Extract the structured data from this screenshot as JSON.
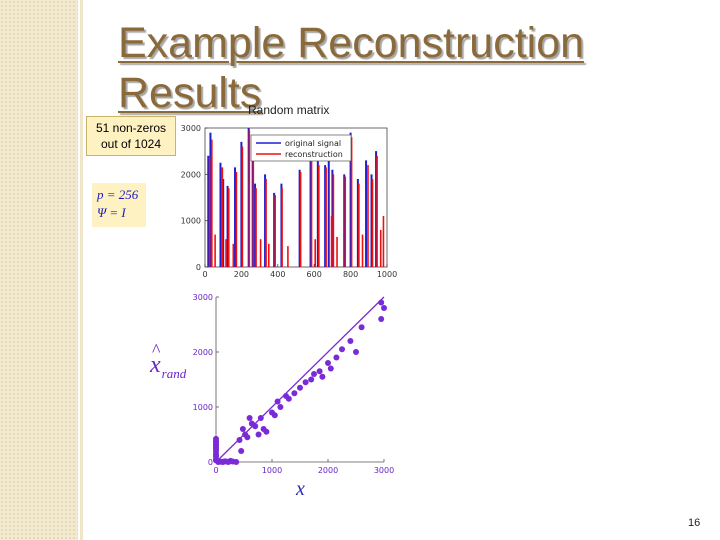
{
  "slide": {
    "title": "Example Reconstruction Results",
    "subtitle": "Random matrix",
    "note_line1": "51 non-zeros",
    "note_line2": "out of 1024",
    "eq_line1": "p = 256",
    "eq_line2": "Ψ = I",
    "xhat_main": "x",
    "xhat_hat": "^",
    "xhat_sub": "rand",
    "x_label": "x",
    "page_number": "16"
  },
  "colors": {
    "title": "#8a6a3a",
    "original_signal": "#1f1fd0",
    "reconstruction": "#ee1111",
    "scatter_points": "#7a2ad6",
    "fit_line": "#7a2ad6"
  },
  "chart_data": [
    {
      "type": "bar",
      "subtype": "stem",
      "legend_position": "top-right",
      "xlim": [
        0,
        1000
      ],
      "ylim": [
        0,
        3000
      ],
      "x_ticks": [
        "0",
        "200",
        "400",
        "600",
        "800",
        "1000"
      ],
      "y_ticks": [
        "0",
        "1000",
        "2000",
        "3000"
      ],
      "legend": [
        "original signal",
        "reconstruction"
      ],
      "series": [
        {
          "name": "original signal",
          "x": [
            18,
            30,
            85,
            100,
            124,
            165,
            200,
            240,
            262,
            275,
            330,
            380,
            420,
            520,
            580,
            620,
            660,
            680,
            700,
            765,
            800,
            840,
            885,
            915,
            940
          ],
          "values": [
            2400,
            2900,
            2250,
            1900,
            1750,
            2150,
            2700,
            3000,
            2600,
            1800,
            2000,
            1600,
            1800,
            2100,
            2500,
            2300,
            2200,
            2600,
            2100,
            2000,
            2900,
            1900,
            2300,
            2000,
            2500
          ]
        },
        {
          "name": "reconstruction",
          "x": [
            20,
            32,
            50,
            90,
            110,
            125,
            150,
            167,
            200,
            238,
            260,
            275,
            300,
            330,
            345,
            380,
            418,
            450,
            520,
            580,
            600,
            620,
            660,
            690,
            700,
            720,
            765,
            800,
            840,
            860,
            890,
            915,
            940,
            960,
            975
          ],
          "values": [
            2350,
            2750,
            700,
            2150,
            600,
            1700,
            500,
            2050,
            2600,
            2950,
            2550,
            1700,
            600,
            1900,
            500,
            1550,
            1700,
            450,
            2050,
            2400,
            600,
            2200,
            2150,
            1100,
            2000,
            650,
            1950,
            2800,
            1800,
            700,
            2200,
            1900,
            2400,
            800,
            1100
          ]
        }
      ]
    },
    {
      "type": "scatter",
      "xlim": [
        0,
        3000
      ],
      "ylim": [
        0,
        3000
      ],
      "x_ticks": [
        "0",
        "1000",
        "2000",
        "3000"
      ],
      "y_ticks": [
        "0",
        "1000",
        "2000",
        "3000"
      ],
      "x": [
        40,
        60,
        90,
        120,
        150,
        180,
        220,
        260,
        300,
        360,
        420,
        450,
        480,
        520,
        560,
        600,
        640,
        700,
        760,
        800,
        850,
        900,
        1000,
        1050,
        1100,
        1150,
        1250,
        1300,
        1400,
        1500,
        1600,
        1700,
        1750,
        1850,
        1900,
        2000,
        2050,
        2150,
        2250,
        2400,
        2500,
        2600,
        2950,
        2950,
        3000,
        0,
        0,
        0,
        0,
        0,
        0,
        0,
        0,
        0,
        0,
        0,
        0,
        0
      ],
      "y": [
        0,
        10,
        5,
        0,
        12,
        8,
        0,
        20,
        10,
        0,
        400,
        200,
        600,
        500,
        450,
        800,
        700,
        650,
        500,
        800,
        600,
        550,
        900,
        850,
        1100,
        1000,
        1200,
        1150,
        1250,
        1350,
        1450,
        1500,
        1600,
        1650,
        1550,
        1800,
        1700,
        1900,
        2050,
        2200,
        2000,
        2450,
        2600,
        2900,
        2800,
        50,
        120,
        200,
        260,
        320,
        380,
        100,
        150,
        240,
        300,
        360,
        420,
        30
      ]
    }
  ]
}
